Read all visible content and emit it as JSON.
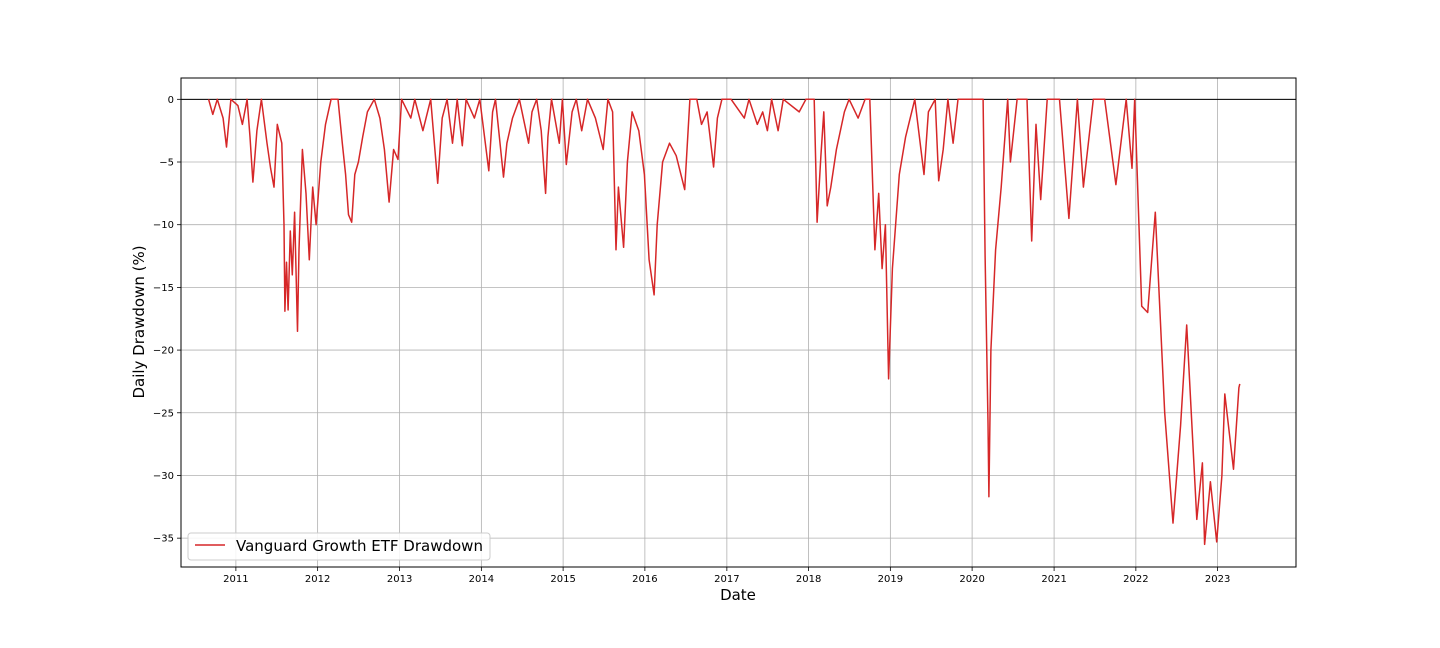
{
  "chart_data": {
    "type": "line",
    "title": "",
    "xlabel": "Date",
    "ylabel": "Daily Drawdown (%)",
    "xlim": [
      "2010-05-01",
      "2023-12-17"
    ],
    "ylim": [
      -37.3,
      1.7
    ],
    "x_ticks": [
      "2011",
      "2012",
      "2013",
      "2014",
      "2015",
      "2016",
      "2017",
      "2018",
      "2019",
      "2020",
      "2021",
      "2022",
      "2023"
    ],
    "y_ticks": [
      0,
      -5,
      -10,
      -15,
      -20,
      -25,
      -30,
      -35
    ],
    "y_tick_labels": [
      "0",
      "−5",
      "−10",
      "−15",
      "−20",
      "−25",
      "−30",
      "−35"
    ],
    "grid": true,
    "reference_line": {
      "y": 0,
      "color": "#000000"
    },
    "legend": {
      "position": "lower-left"
    },
    "series": [
      {
        "name": "Vanguard Growth ETF Drawdown",
        "color": "#d62728",
        "points": [
          [
            "2010-09-01",
            0.0
          ],
          [
            "2010-09-20",
            -1.2
          ],
          [
            "2010-10-10",
            0.0
          ],
          [
            "2010-11-05",
            -1.5
          ],
          [
            "2010-11-20",
            -3.8
          ],
          [
            "2010-12-10",
            0.0
          ],
          [
            "2011-01-10",
            -0.5
          ],
          [
            "2011-01-30",
            -2.0
          ],
          [
            "2011-02-20",
            0.0
          ],
          [
            "2011-03-05",
            -3.0
          ],
          [
            "2011-03-18",
            -6.6
          ],
          [
            "2011-04-05",
            -2.5
          ],
          [
            "2011-04-25",
            0.0
          ],
          [
            "2011-05-20",
            -3.5
          ],
          [
            "2011-06-05",
            -5.5
          ],
          [
            "2011-06-20",
            -7.0
          ],
          [
            "2011-07-05",
            -2.0
          ],
          [
            "2011-07-25",
            -3.5
          ],
          [
            "2011-08-04",
            -10.0
          ],
          [
            "2011-08-08",
            -16.9
          ],
          [
            "2011-08-15",
            -13.0
          ],
          [
            "2011-08-22",
            -16.8
          ],
          [
            "2011-09-01",
            -10.5
          ],
          [
            "2011-09-10",
            -14.0
          ],
          [
            "2011-09-20",
            -9.0
          ],
          [
            "2011-10-03",
            -18.5
          ],
          [
            "2011-10-10",
            -12.0
          ],
          [
            "2011-10-25",
            -4.0
          ],
          [
            "2011-11-10",
            -7.5
          ],
          [
            "2011-11-25",
            -12.8
          ],
          [
            "2011-12-10",
            -7.0
          ],
          [
            "2011-12-25",
            -10.0
          ],
          [
            "2012-01-15",
            -5.0
          ],
          [
            "2012-02-05",
            -2.0
          ],
          [
            "2012-03-01",
            0.0
          ],
          [
            "2012-04-01",
            0.0
          ],
          [
            "2012-04-20",
            -3.5
          ],
          [
            "2012-05-05",
            -6.0
          ],
          [
            "2012-05-18",
            -9.2
          ],
          [
            "2012-06-01",
            -9.8
          ],
          [
            "2012-06-15",
            -6.0
          ],
          [
            "2012-07-01",
            -5.0
          ],
          [
            "2012-07-20",
            -3.0
          ],
          [
            "2012-08-10",
            -1.0
          ],
          [
            "2012-09-10",
            0.0
          ],
          [
            "2012-10-05",
            -1.5
          ],
          [
            "2012-10-25",
            -4.0
          ],
          [
            "2012-11-15",
            -8.2
          ],
          [
            "2012-12-05",
            -4.0
          ],
          [
            "2012-12-25",
            -4.8
          ],
          [
            "2013-01-10",
            0.0
          ],
          [
            "2013-02-20",
            -1.5
          ],
          [
            "2013-03-10",
            0.0
          ],
          [
            "2013-04-15",
            -2.5
          ],
          [
            "2013-05-20",
            0.0
          ],
          [
            "2013-06-20",
            -6.7
          ],
          [
            "2013-07-10",
            -1.5
          ],
          [
            "2013-08-01",
            0.0
          ],
          [
            "2013-08-25",
            -3.5
          ],
          [
            "2013-09-15",
            0.0
          ],
          [
            "2013-10-08",
            -3.7
          ],
          [
            "2013-10-25",
            0.0
          ],
          [
            "2013-12-01",
            -1.5
          ],
          [
            "2013-12-25",
            0.0
          ],
          [
            "2014-02-03",
            -5.7
          ],
          [
            "2014-02-20",
            -1.0
          ],
          [
            "2014-03-05",
            0.0
          ],
          [
            "2014-04-10",
            -6.2
          ],
          [
            "2014-04-25",
            -3.5
          ],
          [
            "2014-05-20",
            -1.5
          ],
          [
            "2014-06-20",
            0.0
          ],
          [
            "2014-07-31",
            -3.5
          ],
          [
            "2014-08-15",
            -1.0
          ],
          [
            "2014-09-05",
            0.0
          ],
          [
            "2014-09-25",
            -2.5
          ],
          [
            "2014-10-15",
            -7.5
          ],
          [
            "2014-10-25",
            -3.0
          ],
          [
            "2014-11-10",
            0.0
          ],
          [
            "2014-12-15",
            -3.5
          ],
          [
            "2014-12-29",
            0.0
          ],
          [
            "2015-01-15",
            -5.2
          ],
          [
            "2015-02-10",
            -1.0
          ],
          [
            "2015-03-01",
            0.0
          ],
          [
            "2015-03-25",
            -2.5
          ],
          [
            "2015-04-20",
            0.0
          ],
          [
            "2015-05-25",
            -1.5
          ],
          [
            "2015-06-29",
            -4.0
          ],
          [
            "2015-07-20",
            0.0
          ],
          [
            "2015-08-10",
            -1.0
          ],
          [
            "2015-08-25",
            -12.0
          ],
          [
            "2015-09-05",
            -7.0
          ],
          [
            "2015-09-28",
            -11.8
          ],
          [
            "2015-10-15",
            -5.0
          ],
          [
            "2015-11-05",
            -1.0
          ],
          [
            "2015-12-05",
            -2.5
          ],
          [
            "2015-12-30",
            -6.0
          ],
          [
            "2016-01-20",
            -12.8
          ],
          [
            "2016-02-11",
            -15.6
          ],
          [
            "2016-02-25",
            -10.0
          ],
          [
            "2016-03-20",
            -5.0
          ],
          [
            "2016-04-20",
            -3.5
          ],
          [
            "2016-05-20",
            -4.5
          ],
          [
            "2016-06-27",
            -7.2
          ],
          [
            "2016-07-20",
            0.0
          ],
          [
            "2016-08-20",
            0.0
          ],
          [
            "2016-09-10",
            -2.0
          ],
          [
            "2016-10-05",
            -1.0
          ],
          [
            "2016-11-03",
            -5.4
          ],
          [
            "2016-11-20",
            -1.5
          ],
          [
            "2016-12-10",
            0.0
          ],
          [
            "2017-01-20",
            0.0
          ],
          [
            "2017-03-20",
            -1.5
          ],
          [
            "2017-04-10",
            0.0
          ],
          [
            "2017-05-17",
            -2.0
          ],
          [
            "2017-06-10",
            -1.0
          ],
          [
            "2017-07-01",
            -2.5
          ],
          [
            "2017-07-20",
            0.0
          ],
          [
            "2017-08-18",
            -2.5
          ],
          [
            "2017-09-10",
            0.0
          ],
          [
            "2017-11-20",
            -1.0
          ],
          [
            "2017-12-20",
            0.0
          ],
          [
            "2018-01-26",
            0.0
          ],
          [
            "2018-02-08",
            -9.8
          ],
          [
            "2018-02-25",
            -4.5
          ],
          [
            "2018-03-10",
            -1.0
          ],
          [
            "2018-03-25",
            -8.5
          ],
          [
            "2018-04-10",
            -7.0
          ],
          [
            "2018-05-05",
            -4.0
          ],
          [
            "2018-06-10",
            -1.0
          ],
          [
            "2018-07-01",
            0.0
          ],
          [
            "2018-08-10",
            -1.5
          ],
          [
            "2018-09-10",
            0.0
          ],
          [
            "2018-10-01",
            0.0
          ],
          [
            "2018-10-24",
            -12.0
          ],
          [
            "2018-11-10",
            -7.5
          ],
          [
            "2018-11-25",
            -13.5
          ],
          [
            "2018-12-10",
            -10.0
          ],
          [
            "2018-12-24",
            -22.3
          ],
          [
            "2019-01-10",
            -13.5
          ],
          [
            "2019-02-10",
            -6.0
          ],
          [
            "2019-03-10",
            -3.0
          ],
          [
            "2019-04-20",
            0.0
          ],
          [
            "2019-05-31",
            -6.0
          ],
          [
            "2019-06-20",
            -1.0
          ],
          [
            "2019-07-20",
            0.0
          ],
          [
            "2019-08-05",
            -6.5
          ],
          [
            "2019-08-25",
            -4.0
          ],
          [
            "2019-09-15",
            0.0
          ],
          [
            "2019-10-08",
            -3.5
          ],
          [
            "2019-10-30",
            0.0
          ],
          [
            "2019-12-20",
            0.0
          ],
          [
            "2020-02-19",
            0.0
          ],
          [
            "2020-02-28",
            -12.5
          ],
          [
            "2020-03-12",
            -25.8
          ],
          [
            "2020-03-16",
            -31.7
          ],
          [
            "2020-03-25",
            -20.0
          ],
          [
            "2020-04-15",
            -12.0
          ],
          [
            "2020-05-10",
            -7.0
          ],
          [
            "2020-06-08",
            0.0
          ],
          [
            "2020-06-20",
            -5.0
          ],
          [
            "2020-07-20",
            0.0
          ],
          [
            "2020-09-02",
            0.0
          ],
          [
            "2020-09-23",
            -11.3
          ],
          [
            "2020-10-12",
            -2.0
          ],
          [
            "2020-11-02",
            -8.0
          ],
          [
            "2020-12-01",
            0.0
          ],
          [
            "2021-01-25",
            0.0
          ],
          [
            "2021-03-08",
            -9.5
          ],
          [
            "2021-04-15",
            0.0
          ],
          [
            "2021-05-12",
            -7.0
          ],
          [
            "2021-06-25",
            0.0
          ],
          [
            "2021-08-15",
            0.0
          ],
          [
            "2021-10-04",
            -6.8
          ],
          [
            "2021-11-19",
            0.0
          ],
          [
            "2021-12-15",
            -5.5
          ],
          [
            "2021-12-27",
            0.0
          ],
          [
            "2022-01-27",
            -16.5
          ],
          [
            "2022-02-23",
            -17.0
          ],
          [
            "2022-03-29",
            -9.0
          ],
          [
            "2022-05-10",
            -25.0
          ],
          [
            "2022-06-16",
            -33.8
          ],
          [
            "2022-07-20",
            -26.0
          ],
          [
            "2022-08-16",
            -18.0
          ],
          [
            "2022-09-30",
            -33.5
          ],
          [
            "2022-10-25",
            -29.0
          ],
          [
            "2022-11-04",
            -35.5
          ],
          [
            "2022-11-30",
            -30.5
          ],
          [
            "2022-12-28",
            -35.3
          ],
          [
            "2023-01-20",
            -30.0
          ],
          [
            "2023-02-02",
            -23.5
          ],
          [
            "2023-03-13",
            -29.5
          ],
          [
            "2023-04-06",
            -23.0
          ],
          [
            "2023-04-10",
            -22.7
          ]
        ]
      }
    ]
  }
}
